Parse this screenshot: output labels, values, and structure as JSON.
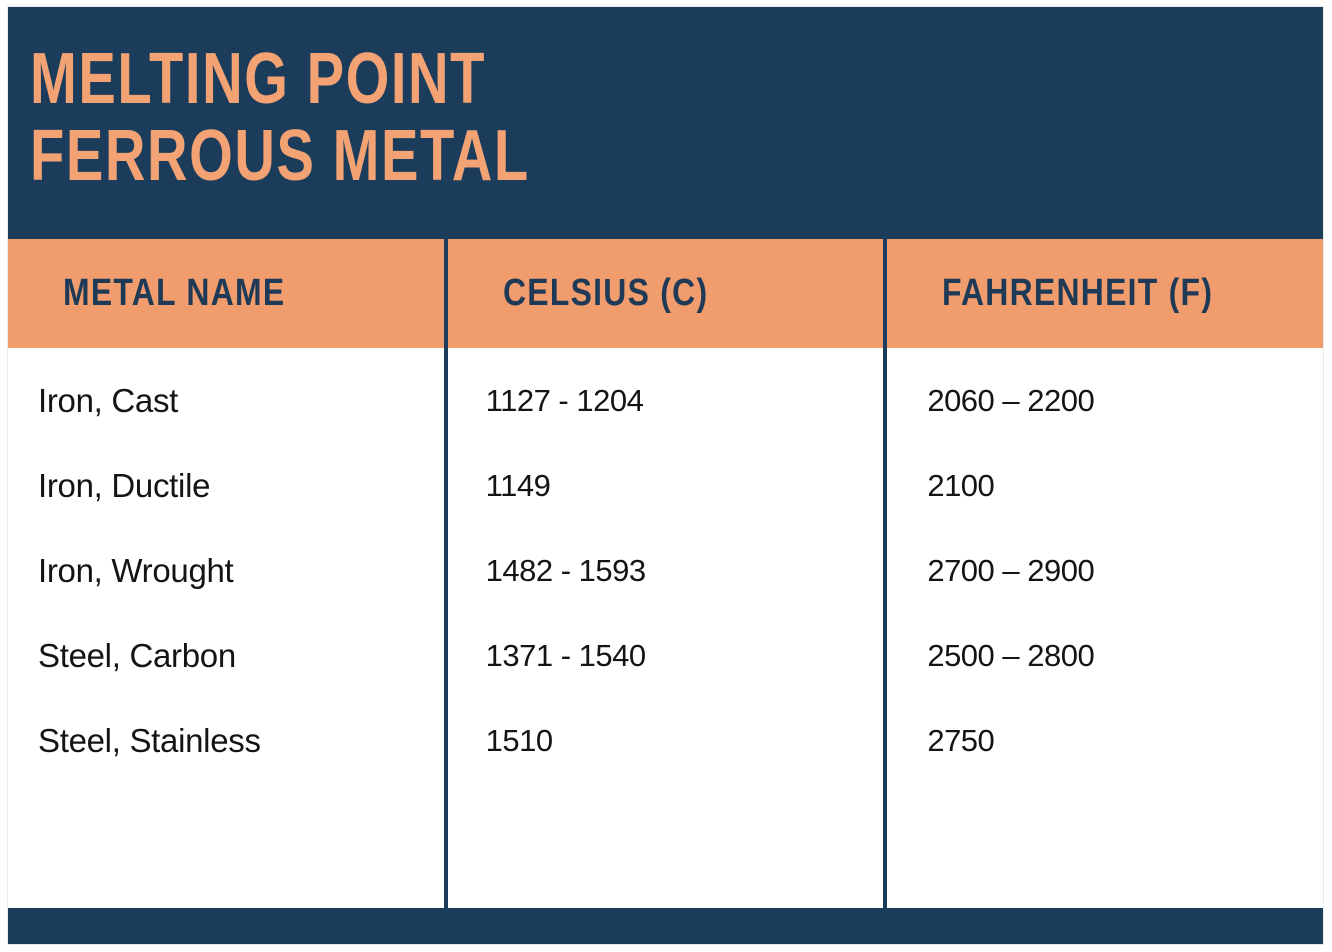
{
  "title": {
    "line1": "MELTING POINT",
    "line2": "FERROUS METAL"
  },
  "table": {
    "columns": [
      {
        "label": "METAL NAME"
      },
      {
        "label": "CELSIUS (C)"
      },
      {
        "label": "FAHRENHEIT (F)"
      }
    ],
    "rows": [
      {
        "metal": "Iron, Cast",
        "celsius": "1127 - 1204",
        "fahrenheit": "2060 – 2200"
      },
      {
        "metal": "Iron, Ductile",
        "celsius": "1149",
        "fahrenheit": "2100"
      },
      {
        "metal": "Iron, Wrought",
        "celsius": "1482 - 1593",
        "fahrenheit": "2700 – 2900"
      },
      {
        "metal": "Steel, Carbon",
        "celsius": "1371 - 1540",
        "fahrenheit": "2500 – 2800"
      },
      {
        "metal": "Steel, Stainless",
        "celsius": "1510",
        "fahrenheit": "2750"
      }
    ]
  },
  "colors": {
    "navy": "#1B3C5B",
    "header_row_orange": "#F09C6C",
    "title_orange": "#F3A274",
    "header_text_navy": "#1E3A57",
    "body_text": "#141414",
    "background": "#FFFFFF"
  },
  "chart_data": {
    "type": "table",
    "title": "MELTING POINT FERROUS METAL",
    "columns": [
      "METAL NAME",
      "CELSIUS (C)",
      "FAHRENHEIT (F)"
    ],
    "rows": [
      [
        "Iron, Cast",
        "1127 - 1204",
        "2060 – 2200"
      ],
      [
        "Iron, Ductile",
        "1149",
        "2100"
      ],
      [
        "Iron, Wrought",
        "1482 - 1593",
        "2700 – 2900"
      ],
      [
        "Steel, Carbon",
        "1371 - 1540",
        "2500 – 2800"
      ],
      [
        "Steel, Stainless",
        "1510",
        "2750"
      ]
    ],
    "celsius_ranges": [
      [
        1127,
        1204
      ],
      [
        1149,
        1149
      ],
      [
        1482,
        1593
      ],
      [
        1371,
        1540
      ],
      [
        1510,
        1510
      ]
    ],
    "fahrenheit_ranges": [
      [
        2060,
        2200
      ],
      [
        2100,
        2100
      ],
      [
        2700,
        2900
      ],
      [
        2500,
        2800
      ],
      [
        2750,
        2750
      ]
    ]
  }
}
